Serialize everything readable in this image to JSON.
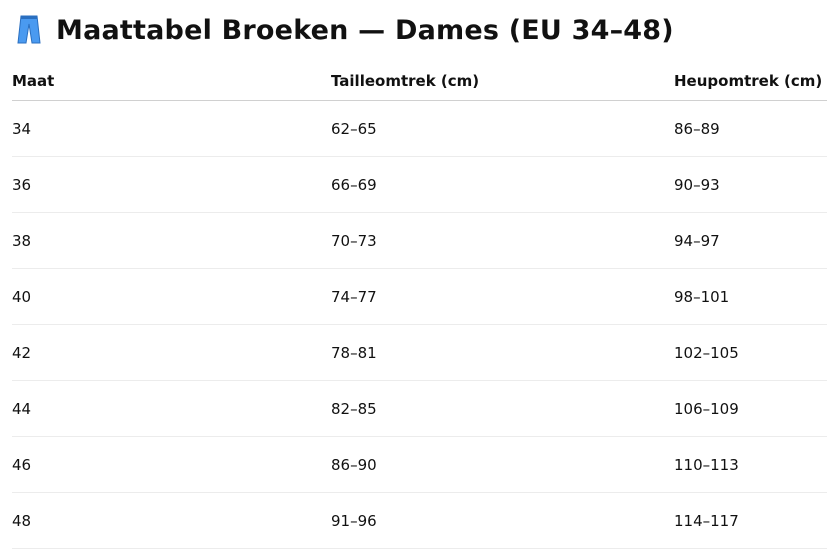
{
  "title": {
    "icon": "jeans-icon",
    "text": "Maattabel Broeken — Dames (EU 34–48)"
  },
  "table": {
    "headers": [
      "Maat",
      "Tailleomtrek (cm)",
      "Heupomtrek (cm)"
    ],
    "rows": [
      [
        "34",
        "62–65",
        "86–89"
      ],
      [
        "36",
        "66–69",
        "90–93"
      ],
      [
        "38",
        "70–73",
        "94–97"
      ],
      [
        "40",
        "74–77",
        "98–101"
      ],
      [
        "42",
        "78–81",
        "102–105"
      ],
      [
        "44",
        "82–85",
        "106–109"
      ],
      [
        "46",
        "86–90",
        "110–113"
      ],
      [
        "48",
        "91–96",
        "114–117"
      ]
    ]
  },
  "colors": {
    "icon": "#3b8ee8",
    "text": "#111111"
  }
}
